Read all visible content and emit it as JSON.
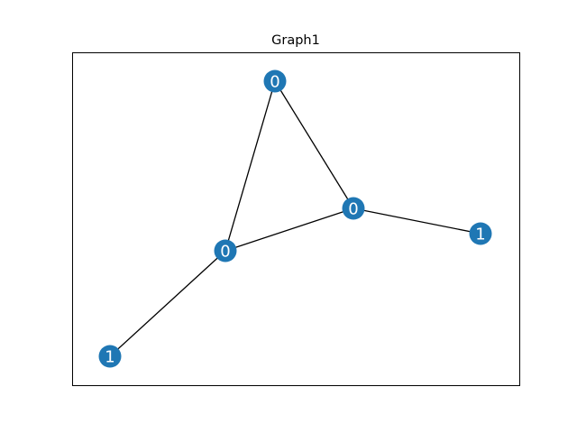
{
  "title": "Graph1",
  "colors": {
    "node_fill": "#1f77b4",
    "edge": "#000000",
    "label_text": "#ffffff"
  },
  "graph": {
    "nodes": [
      {
        "id": "n1",
        "label": "0"
      },
      {
        "id": "n2",
        "label": "0"
      },
      {
        "id": "n3",
        "label": "0"
      },
      {
        "id": "n4",
        "label": "1"
      },
      {
        "id": "n5",
        "label": "1"
      }
    ],
    "edges": [
      {
        "source": "n1",
        "target": "n2"
      },
      {
        "source": "n1",
        "target": "n3"
      },
      {
        "source": "n3",
        "target": "n2"
      },
      {
        "source": "n2",
        "target": "n4"
      },
      {
        "source": "n3",
        "target": "n5"
      }
    ]
  }
}
